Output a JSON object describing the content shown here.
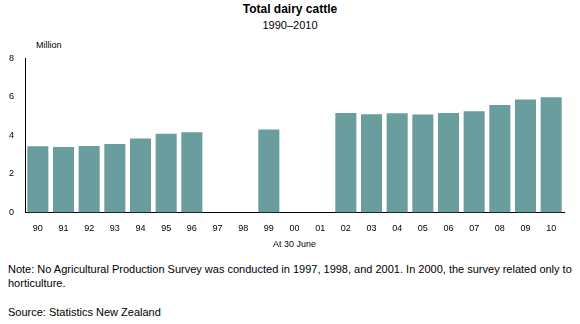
{
  "chart_data": {
    "type": "bar",
    "title": "Total dairy cattle",
    "subtitle": "1990–2010",
    "y_label": "Million",
    "x_label": "At 30 June",
    "note": "Note: No Agricultural Production Survey was conducted in 1997, 1998, and 2001.  In 2000, the survey related only to horticulture.",
    "source": "Source: Statistics New Zealand",
    "categories": [
      "90",
      "91",
      "92",
      "93",
      "94",
      "95",
      "96",
      "97",
      "98",
      "99",
      "00",
      "01",
      "02",
      "03",
      "04",
      "05",
      "06",
      "07",
      "08",
      "09",
      "10"
    ],
    "values": [
      3.44,
      3.4,
      3.45,
      3.55,
      3.84,
      4.09,
      4.16,
      null,
      null,
      4.31,
      null,
      null,
      5.16,
      5.1,
      5.15,
      5.09,
      5.17,
      5.26,
      5.58,
      5.86,
      5.98
    ],
    "color": "#6a9e9e",
    "ylim": [
      0,
      8
    ],
    "yticks": [
      0,
      2,
      4,
      6,
      8
    ],
    "grid": false
  }
}
